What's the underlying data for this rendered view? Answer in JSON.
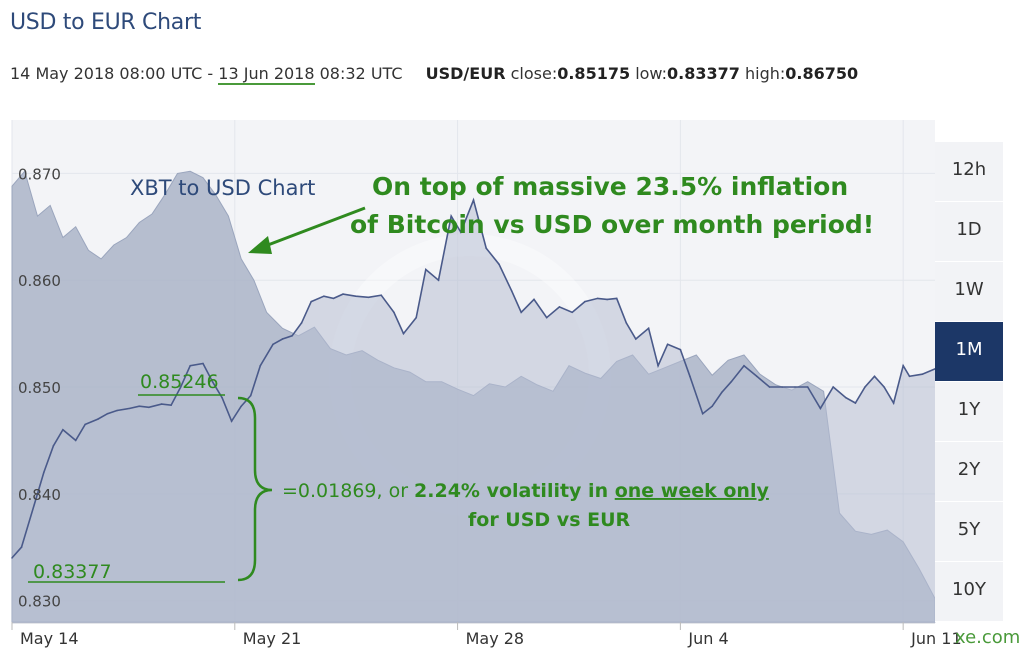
{
  "header": {
    "title": "USD to EUR Chart",
    "period_start": "14 May 2018 08:00 UTC",
    "period_sep": " - ",
    "period_end_date": "13 Jun 2018",
    "period_end_time": " 08:32 UTC",
    "pair": "USD/EUR",
    "close_label": "close:",
    "close_value": "0.85175",
    "low_label": "low:",
    "low_value": "0.83377",
    "high_label": "high:",
    "high_value": "0.86750"
  },
  "ranges": {
    "items": [
      "12h",
      "1D",
      "1W",
      "1M",
      "1Y",
      "2Y",
      "5Y",
      "10Y"
    ],
    "active": "1M"
  },
  "brand": "xe.com",
  "annotations": {
    "xbt_label": "XBT to USD Chart",
    "headline_1": "On top of massive 23.5% inflation",
    "headline_2": "of Bitcoin vs USD over month period!",
    "peak_value": "0.85246",
    "low_value": "0.83377",
    "diff_prefix": "=0.01869,  or ",
    "diff_mid": "2.24% volatility in ",
    "diff_emph": "one week only",
    "diff_line2": "for USD vs EUR"
  },
  "colors": {
    "title": "#2e4a7a",
    "annotation_green": "#2f8a1f",
    "active_range": "#1c3767",
    "usd_eur_line": "#4a5a8a",
    "usd_eur_fill": "#b8c0d4",
    "xbt_fill": "#aab4c8"
  },
  "chart_data": [
    {
      "type": "area",
      "title": "USD to EUR Chart",
      "series_name": "USD/EUR",
      "ylim": [
        0.828,
        0.875
      ],
      "yticks": [
        0.83,
        0.84,
        0.85,
        0.86,
        0.87
      ],
      "ytick_labels": [
        "0.830",
        "0.840",
        "0.850",
        "0.860",
        "0.870"
      ],
      "xticks": [
        0,
        7,
        14,
        21,
        28
      ],
      "xtick_labels": [
        "May 14",
        "May 21",
        "May 28",
        "Jun 4",
        "Jun 11"
      ],
      "grid": true,
      "x": [
        0,
        0.3,
        0.7,
        1.0,
        1.3,
        1.6,
        2.0,
        2.3,
        2.7,
        3.0,
        3.3,
        3.7,
        4.0,
        4.3,
        4.7,
        5.0,
        5.3,
        5.6,
        6.0,
        6.3,
        6.6,
        6.9,
        7.2,
        7.5,
        7.8,
        8.2,
        8.5,
        8.8,
        9.1,
        9.4,
        9.8,
        10.1,
        10.4,
        10.8,
        11.2,
        11.6,
        12.0,
        12.3,
        12.7,
        13.0,
        13.4,
        13.8,
        14.1,
        14.5,
        14.9,
        15.3,
        15.7,
        16.0,
        16.4,
        16.8,
        17.2,
        17.6,
        18.0,
        18.4,
        18.7,
        19.0,
        19.3,
        19.6,
        20.0,
        20.3,
        20.6,
        21.0,
        21.3,
        21.7,
        22.0,
        22.3,
        22.6,
        23.0,
        23.4,
        23.8,
        24.2,
        24.6,
        25.0,
        25.4,
        25.8,
        26.2,
        26.5,
        26.8,
        27.1,
        27.4,
        27.7,
        28.0,
        28.2,
        28.6,
        29.0
      ],
      "y": [
        0.834,
        0.835,
        0.839,
        0.842,
        0.8445,
        0.846,
        0.845,
        0.8465,
        0.847,
        0.8475,
        0.8478,
        0.848,
        0.8482,
        0.8481,
        0.8484,
        0.8483,
        0.85,
        0.852,
        0.8522,
        0.8505,
        0.849,
        0.8468,
        0.8482,
        0.8492,
        0.852,
        0.854,
        0.8545,
        0.8548,
        0.856,
        0.858,
        0.8585,
        0.8583,
        0.8587,
        0.8585,
        0.8584,
        0.8586,
        0.857,
        0.855,
        0.8565,
        0.861,
        0.86,
        0.866,
        0.8645,
        0.8675,
        0.863,
        0.8615,
        0.859,
        0.857,
        0.8582,
        0.8565,
        0.8575,
        0.857,
        0.858,
        0.8583,
        0.8582,
        0.8583,
        0.856,
        0.8545,
        0.8555,
        0.852,
        0.854,
        0.8535,
        0.851,
        0.8475,
        0.8482,
        0.8495,
        0.8505,
        0.852,
        0.851,
        0.85,
        0.85,
        0.85,
        0.85,
        0.848,
        0.85,
        0.849,
        0.8485,
        0.85,
        0.851,
        0.85,
        0.8485,
        0.852,
        0.851,
        0.8512,
        0.8517
      ]
    },
    {
      "type": "area",
      "title": "XBT to USD Chart",
      "series_name": "",
      "x": [
        0,
        0.4,
        0.8,
        1.2,
        1.6,
        2.0,
        2.4,
        2.8,
        3.2,
        3.6,
        4.0,
        4.4,
        4.8,
        5.2,
        5.6,
        6.0,
        6.4,
        6.8,
        7.2,
        7.6,
        8.0,
        8.5,
        9.0,
        9.5,
        10.0,
        10.5,
        11.0,
        11.5,
        12.0,
        12.5,
        13.0,
        13.5,
        14.0,
        14.5,
        15.0,
        15.5,
        16.0,
        16.5,
        17.0,
        17.5,
        18.0,
        18.5,
        19.0,
        19.5,
        20.0,
        20.5,
        21.0,
        21.5,
        22.0,
        22.5,
        23.0,
        23.5,
        24.0,
        24.5,
        25.0,
        25.5,
        26.0,
        26.5,
        27.0,
        27.5,
        28.0,
        28.5,
        29.0
      ],
      "y": [
        0.8688,
        0.8702,
        0.866,
        0.867,
        0.864,
        0.865,
        0.8628,
        0.862,
        0.8633,
        0.864,
        0.8654,
        0.8662,
        0.868,
        0.87,
        0.8702,
        0.8696,
        0.868,
        0.866,
        0.862,
        0.86,
        0.857,
        0.8555,
        0.8548,
        0.8556,
        0.8536,
        0.853,
        0.8534,
        0.8525,
        0.8518,
        0.8514,
        0.8505,
        0.8505,
        0.8498,
        0.8492,
        0.8503,
        0.85,
        0.851,
        0.8502,
        0.8496,
        0.852,
        0.8513,
        0.8508,
        0.8524,
        0.853,
        0.8512,
        0.8518,
        0.8524,
        0.853,
        0.8511,
        0.8525,
        0.853,
        0.8512,
        0.8502,
        0.8497,
        0.8505,
        0.8496,
        0.8382,
        0.8365,
        0.8362,
        0.8366,
        0.8355,
        0.833,
        0.8302
      ]
    }
  ]
}
